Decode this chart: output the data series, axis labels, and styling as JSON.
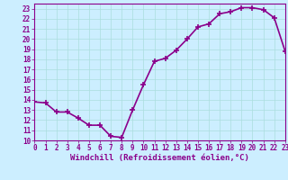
{
  "x": [
    0,
    1,
    2,
    3,
    4,
    5,
    6,
    7,
    8,
    9,
    10,
    11,
    12,
    13,
    14,
    15,
    16,
    17,
    18,
    19,
    20,
    21,
    22,
    23
  ],
  "y": [
    13.8,
    13.7,
    12.8,
    12.8,
    12.2,
    11.5,
    11.5,
    10.4,
    10.3,
    13.0,
    15.5,
    17.8,
    18.1,
    18.9,
    20.0,
    21.2,
    21.5,
    22.5,
    22.7,
    23.1,
    23.1,
    22.9,
    22.1,
    18.8
  ],
  "xlim": [
    0,
    23
  ],
  "ylim": [
    10,
    23.5
  ],
  "yticks": [
    10,
    11,
    12,
    13,
    14,
    15,
    16,
    17,
    18,
    19,
    20,
    21,
    22,
    23
  ],
  "xticks": [
    0,
    1,
    2,
    3,
    4,
    5,
    6,
    7,
    8,
    9,
    10,
    11,
    12,
    13,
    14,
    15,
    16,
    17,
    18,
    19,
    20,
    21,
    22,
    23
  ],
  "xlabel": "Windchill (Refroidissement éolien,°C)",
  "line_color": "#8b008b",
  "marker": "+",
  "marker_size": 4,
  "marker_lw": 1.2,
  "bg_color": "#cceeff",
  "grid_color": "#aadddd",
  "tick_color": "#8b008b",
  "label_color": "#8b008b",
  "tick_fontsize": 5.5,
  "xlabel_fontsize": 6.5,
  "line_width": 1.2
}
